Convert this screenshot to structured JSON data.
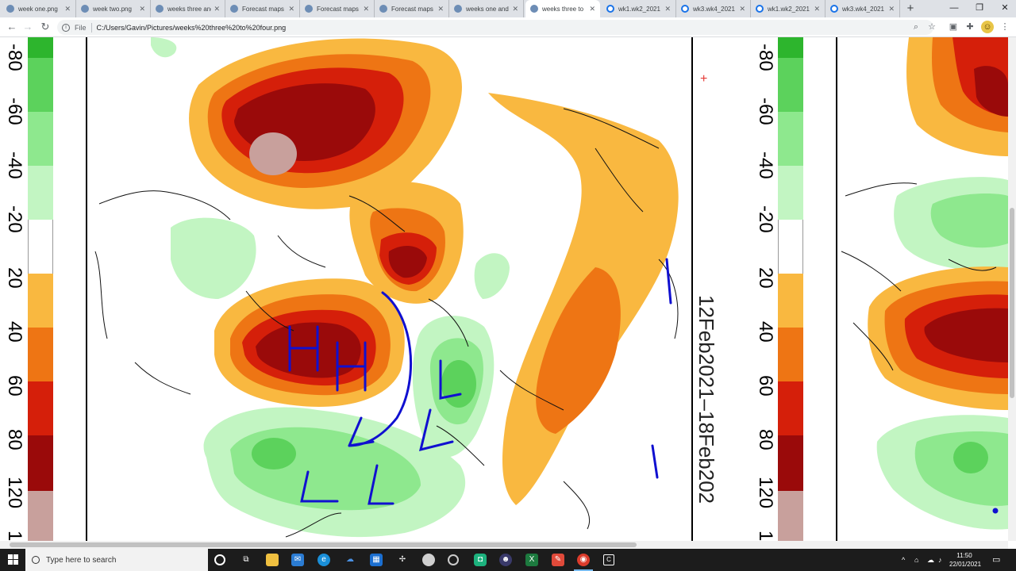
{
  "browser": {
    "tabs": [
      {
        "label": "week one.png",
        "icon": "image-icon",
        "active": false
      },
      {
        "label": "week two.png",
        "icon": "image-icon",
        "active": false
      },
      {
        "label": "weeks three and",
        "icon": "image-icon",
        "active": false
      },
      {
        "label": "Forecast maps",
        "icon": "image-icon",
        "active": false
      },
      {
        "label": "Forecast maps",
        "icon": "image-icon",
        "active": false
      },
      {
        "label": "Forecast maps",
        "icon": "image-icon",
        "active": false
      },
      {
        "label": "weeks one and",
        "icon": "image-icon",
        "active": false
      },
      {
        "label": "weeks three to",
        "icon": "image-icon",
        "active": true
      },
      {
        "label": "wk1.wk2_2021",
        "icon": "globe-icon",
        "active": false
      },
      {
        "label": "wk3.wk4_2021",
        "icon": "globe-icon",
        "active": false
      },
      {
        "label": "wk1.wk2_2021",
        "icon": "globe-icon",
        "active": false
      },
      {
        "label": "wk3.wk4_2021",
        "icon": "globe-icon",
        "active": false
      }
    ],
    "new_tab": "+",
    "window_controls": {
      "minimize": "—",
      "maximize": "❐",
      "close": "✕"
    },
    "address": {
      "scheme": "File",
      "url": "C:/Users/Gavin/Pictures/weeks%20three%20to%20four.png"
    }
  },
  "image": {
    "scale_labels": [
      "-80",
      "-60",
      "-40",
      "-20",
      "20",
      "40",
      "60",
      "80",
      "120",
      "1"
    ],
    "scale_colors": [
      "#2db52d",
      "#5cd25c",
      "#8ee88e",
      "#c2f5c2",
      "#ffffff",
      "#f9b840",
      "#ee7514",
      "#d51f0a",
      "#9a0a0a",
      "#c8a09c"
    ],
    "date_range": "12Feb2021–18Feb202",
    "annotations": [
      "H",
      "H",
      "L",
      "L",
      "L",
      "L"
    ],
    "annotation_color": "#1010d0"
  },
  "taskbar": {
    "search_placeholder": "Type here to search",
    "apps": [
      "cortana-icon",
      "task-view-icon",
      "file-explorer-icon",
      "mail-icon",
      "edge-icon",
      "onedrive-icon",
      "calendar-icon",
      "teams-icon",
      "photos-icon",
      "maps-icon",
      "extra-icon",
      "excel-icon",
      "snip-icon",
      "chrome-icon",
      "terminal-icon"
    ],
    "time": "11:50",
    "date": "22/01/2021"
  }
}
